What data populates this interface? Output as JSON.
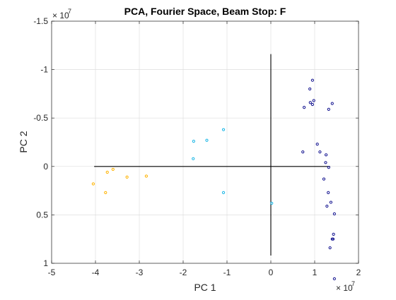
{
  "chart_data": {
    "type": "scatter",
    "title": "PCA, Fourier Space, Beam Stop: F",
    "xlabel": "PC 1",
    "ylabel": "PC 2",
    "xlim": [
      -5,
      2
    ],
    "ylim": [
      -1.5,
      1
    ],
    "y_reversed": true,
    "x_exponent_label": "× 10",
    "x_exponent_power": "7",
    "y_exponent_label": "× 10",
    "y_exponent_power": "7",
    "grid": true,
    "legend": "none",
    "xticks": [
      -5,
      -4,
      -3,
      -2,
      -1,
      0,
      1,
      2
    ],
    "xtick_labels": [
      "-5",
      "-4",
      "-3",
      "-2",
      "-1",
      "0",
      "1",
      "2"
    ],
    "yticks": [
      -1.5,
      -1,
      -0.5,
      0,
      0.5,
      1
    ],
    "ytick_labels": [
      "-1.5",
      "-1",
      "-0.5",
      "0",
      "0.5",
      "1"
    ],
    "axis_lines": [
      {
        "orientation": "horizontal",
        "from": [
          -4.03,
          0
        ],
        "to": [
          1.35,
          0
        ]
      },
      {
        "orientation": "vertical",
        "from": [
          0,
          -1.16
        ],
        "to": [
          0,
          0.92
        ]
      }
    ],
    "series": [
      {
        "color": "#ffb300",
        "points": [
          [
            -4.05,
            0.18
          ],
          [
            -3.77,
            0.27
          ],
          [
            -3.73,
            0.06
          ],
          [
            -3.6,
            0.03
          ],
          [
            -3.28,
            0.11
          ],
          [
            -2.84,
            0.1
          ]
        ]
      },
      {
        "color": "#19b6e6",
        "points": [
          [
            -1.08,
            0.27
          ],
          [
            0.02,
            0.38
          ],
          [
            -1.77,
            -0.08
          ],
          [
            -1.76,
            -0.26
          ],
          [
            -1.46,
            -0.27
          ],
          [
            -1.08,
            -0.38
          ]
        ]
      },
      {
        "color": "#141490",
        "points": [
          [
            1.45,
            1.16
          ],
          [
            1.35,
            0.84
          ],
          [
            1.4,
            0.75
          ],
          [
            1.42,
            0.75
          ],
          [
            1.43,
            0.7
          ],
          [
            1.45,
            0.49
          ],
          [
            1.37,
            0.37
          ],
          [
            1.28,
            0.41
          ],
          [
            1.31,
            0.27
          ],
          [
            1.21,
            0.13
          ],
          [
            1.32,
            0.01
          ],
          [
            1.25,
            -0.04
          ],
          [
            1.26,
            -0.12
          ],
          [
            1.12,
            -0.15
          ],
          [
            1.06,
            -0.23
          ],
          [
            0.73,
            -0.15
          ],
          [
            0.76,
            -0.61
          ],
          [
            0.9,
            -0.66
          ],
          [
            0.95,
            -0.64
          ],
          [
            0.98,
            -0.68
          ],
          [
            1.32,
            -0.59
          ],
          [
            1.4,
            -0.65
          ],
          [
            0.89,
            -0.8
          ],
          [
            0.95,
            -0.89
          ]
        ]
      }
    ]
  }
}
